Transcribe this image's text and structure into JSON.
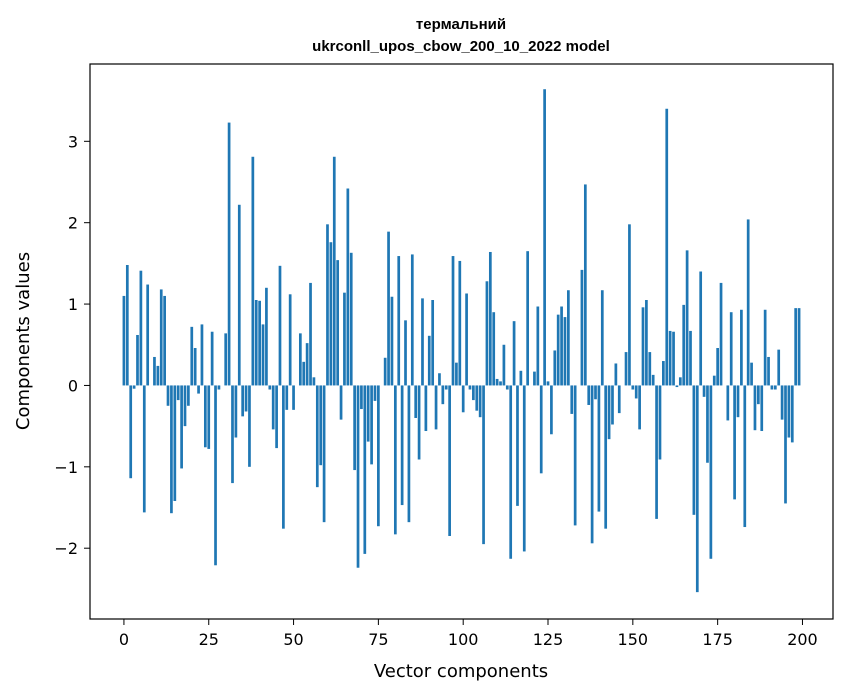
{
  "chart_data": {
    "type": "bar",
    "title_line1": "термальний",
    "title_line2": "ukrconll_upos_cbow_200_10_2022 model",
    "xlabel": "Vector components",
    "ylabel": "Components values",
    "xlim": [
      -10,
      209
    ],
    "ylim": [
      -2.87,
      3.95
    ],
    "xticks": [
      0,
      25,
      50,
      75,
      100,
      125,
      150,
      175,
      200
    ],
    "yticks": [
      -2,
      -1,
      0,
      1,
      2,
      3
    ],
    "ytick_labels": [
      "−2",
      "−1",
      "0",
      "1",
      "2",
      "3"
    ],
    "grid": false,
    "legend": "none",
    "bar_color": "#1f77b4",
    "x": [
      0,
      1,
      2,
      3,
      4,
      5,
      6,
      7,
      8,
      9,
      10,
      11,
      12,
      13,
      14,
      15,
      16,
      17,
      18,
      19,
      20,
      21,
      22,
      23,
      24,
      25,
      26,
      27,
      28,
      29,
      30,
      31,
      32,
      33,
      34,
      35,
      36,
      37,
      38,
      39,
      40,
      41,
      42,
      43,
      44,
      45,
      46,
      47,
      48,
      49,
      50,
      51,
      52,
      53,
      54,
      55,
      56,
      57,
      58,
      59,
      60,
      61,
      62,
      63,
      64,
      65,
      66,
      67,
      68,
      69,
      70,
      71,
      72,
      73,
      74,
      75,
      76,
      77,
      78,
      79,
      80,
      81,
      82,
      83,
      84,
      85,
      86,
      87,
      88,
      89,
      90,
      91,
      92,
      93,
      94,
      95,
      96,
      97,
      98,
      99,
      100,
      101,
      102,
      103,
      104,
      105,
      106,
      107,
      108,
      109,
      110,
      111,
      112,
      113,
      114,
      115,
      116,
      117,
      118,
      119,
      120,
      121,
      122,
      123,
      124,
      125,
      126,
      127,
      128,
      129,
      130,
      131,
      132,
      133,
      134,
      135,
      136,
      137,
      138,
      139,
      140,
      141,
      142,
      143,
      144,
      145,
      146,
      147,
      148,
      149,
      150,
      151,
      152,
      153,
      154,
      155,
      156,
      157,
      158,
      159,
      160,
      161,
      162,
      163,
      164,
      165,
      166,
      167,
      168,
      169,
      170,
      171,
      172,
      173,
      174,
      175,
      176,
      177,
      178,
      179,
      180,
      181,
      182,
      183,
      184,
      185,
      186,
      187,
      188,
      189,
      190,
      191,
      192,
      193,
      194,
      195,
      196,
      197,
      198,
      199
    ],
    "values": [
      1.1,
      1.48,
      -1.14,
      -0.04,
      0.62,
      1.41,
      -1.56,
      1.24,
      0.0,
      0.35,
      0.24,
      1.18,
      1.1,
      -0.25,
      -1.57,
      -1.42,
      -0.18,
      -1.02,
      -0.5,
      -0.25,
      0.72,
      0.46,
      -0.1,
      0.75,
      -0.76,
      -0.78,
      0.66,
      -2.21,
      -0.05,
      0.0,
      0.64,
      3.23,
      -1.2,
      -0.64,
      2.22,
      -0.38,
      -0.32,
      -1.0,
      2.81,
      1.05,
      1.04,
      0.75,
      1.2,
      -0.05,
      -0.54,
      -0.77,
      1.47,
      -1.76,
      -0.3,
      1.12,
      -0.3,
      0.0,
      0.64,
      0.29,
      0.52,
      1.26,
      0.1,
      -1.25,
      -0.98,
      -1.68,
      1.98,
      1.76,
      2.81,
      1.54,
      -0.42,
      1.14,
      2.42,
      1.63,
      -1.04,
      -2.24,
      -0.29,
      -2.07,
      -0.69,
      -0.97,
      -0.19,
      -1.73,
      0.0,
      0.34,
      1.89,
      1.09,
      -1.83,
      1.59,
      -1.47,
      0.8,
      -1.68,
      1.61,
      -0.4,
      -0.91,
      1.07,
      -0.56,
      0.61,
      1.05,
      -0.54,
      0.15,
      -0.23,
      -0.05,
      -1.85,
      1.59,
      0.28,
      1.53,
      -0.33,
      1.13,
      -0.05,
      -0.18,
      -0.31,
      -0.39,
      -1.95,
      1.28,
      1.64,
      0.9,
      0.08,
      0.05,
      0.5,
      -0.05,
      -2.13,
      0.79,
      -1.48,
      0.18,
      -2.04,
      1.65,
      0.0,
      0.17,
      0.97,
      -1.08,
      3.64,
      0.05,
      -0.6,
      0.43,
      0.87,
      0.97,
      0.84,
      1.17,
      -0.35,
      -1.72,
      0.0,
      1.42,
      2.47,
      -0.24,
      -1.94,
      -0.17,
      -1.55,
      1.17,
      -1.76,
      -0.66,
      -0.48,
      0.27,
      -0.34,
      0.0,
      0.41,
      1.98,
      -0.05,
      -0.16,
      -0.54,
      0.96,
      1.05,
      0.41,
      0.13,
      -1.64,
      -0.91,
      0.3,
      3.4,
      0.67,
      0.66,
      -0.02,
      0.1,
      0.99,
      1.66,
      0.67,
      -1.59,
      -2.54,
      1.4,
      -0.14,
      -0.95,
      -2.13,
      0.12,
      0.46,
      1.26,
      0.0,
      -0.43,
      0.9,
      -1.4,
      -0.39,
      0.93,
      -1.74,
      2.04,
      0.28,
      -0.55,
      -0.23,
      -0.56,
      0.93,
      0.35,
      -0.05,
      -0.05,
      0.44,
      -0.42,
      -1.45,
      -0.64,
      -0.7,
      0.95,
      0.95
    ]
  }
}
